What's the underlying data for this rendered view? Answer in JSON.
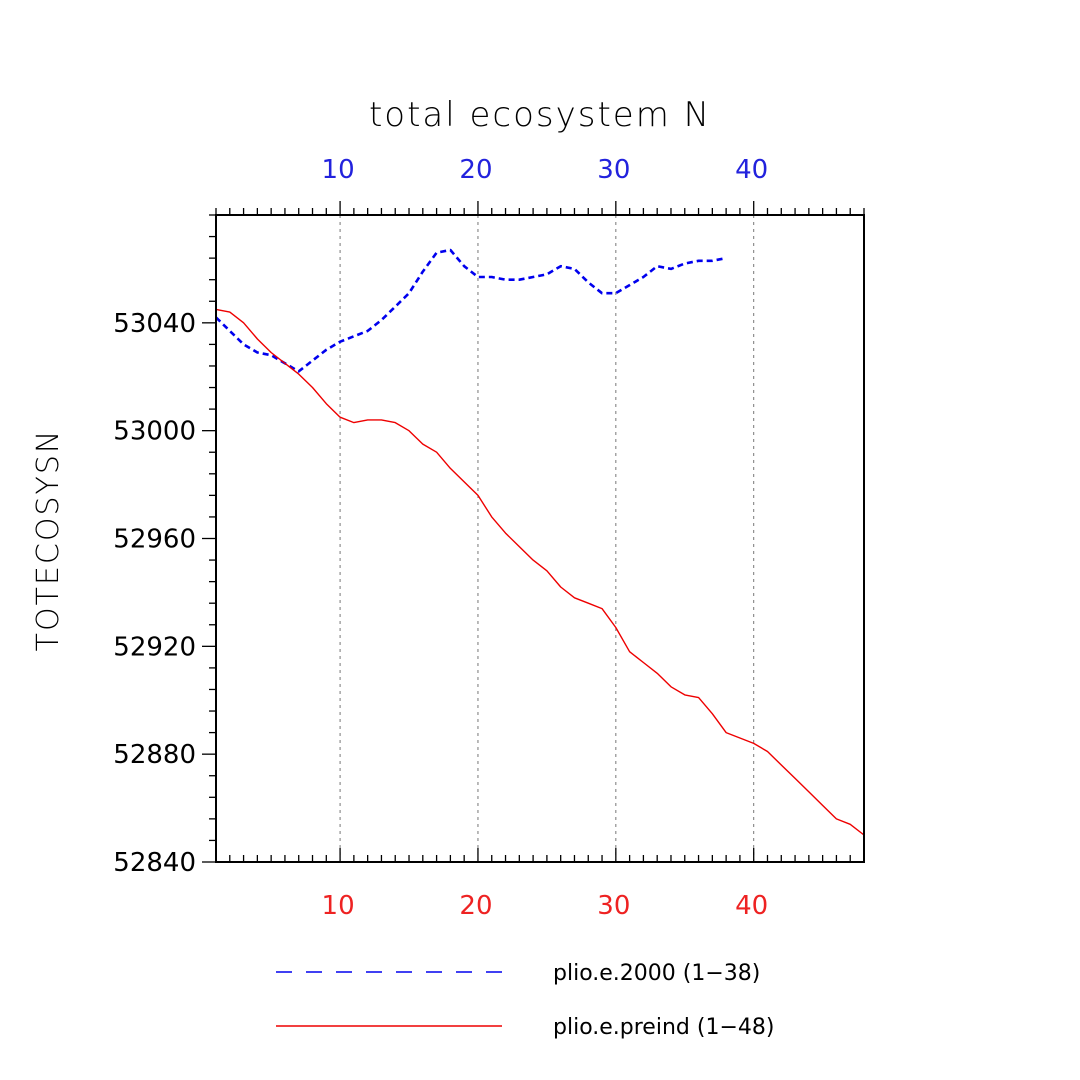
{
  "chart_data": {
    "type": "line",
    "title": "total ecosystem N",
    "ylabel": "TOTECOSYSN",
    "xlim": [
      1,
      48
    ],
    "ylim": [
      52840,
      53080
    ],
    "yticks": [
      52840,
      52880,
      52920,
      52960,
      53000,
      53040
    ],
    "xticks": [
      10,
      20,
      30,
      40
    ],
    "top_axis_color": "#2222dd",
    "bottom_axis_color": "#ee2222",
    "grid": "vertical dashed at x ticks",
    "legend_position": "bottom",
    "series": [
      {
        "name": "plio.e.2000 (1−38)",
        "color": "#0000ee",
        "style": "dashed",
        "x": [
          1,
          2,
          3,
          4,
          5,
          6,
          7,
          8,
          9,
          10,
          11,
          12,
          13,
          14,
          15,
          16,
          17,
          18,
          19,
          20,
          21,
          22,
          23,
          24,
          25,
          26,
          27,
          28,
          29,
          30,
          31,
          32,
          33,
          34,
          35,
          36,
          37,
          38
        ],
        "y": [
          53042,
          53037,
          53032,
          53029,
          53028,
          53025,
          53022,
          53026,
          53030,
          53033,
          53035,
          53037,
          53041,
          53046,
          53051,
          53059,
          53066,
          53067,
          53061,
          53057,
          53057,
          53056,
          53056,
          53057,
          53058,
          53061,
          53060,
          53055,
          53051,
          53051,
          53054,
          53057,
          53061,
          53060,
          53062,
          53063,
          53063,
          53064
        ]
      },
      {
        "name": "plio.e.preind (1−48)",
        "color": "#ee0000",
        "style": "solid",
        "x": [
          1,
          2,
          3,
          4,
          5,
          6,
          7,
          8,
          9,
          10,
          11,
          12,
          13,
          14,
          15,
          16,
          17,
          18,
          19,
          20,
          21,
          22,
          23,
          24,
          25,
          26,
          27,
          28,
          29,
          30,
          31,
          32,
          33,
          34,
          35,
          36,
          37,
          38,
          39,
          40,
          41,
          42,
          43,
          44,
          45,
          46,
          47,
          48
        ],
        "y": [
          53045,
          53044,
          53040,
          53034,
          53029,
          53025,
          53021,
          53016,
          53010,
          53005,
          53003,
          53004,
          53004,
          53003,
          53000,
          52995,
          52992,
          52986,
          52981,
          52976,
          52968,
          52962,
          52957,
          52952,
          52948,
          52942,
          52938,
          52936,
          52934,
          52927,
          52918,
          52914,
          52910,
          52905,
          52902,
          52901,
          52895,
          52888,
          52886,
          52884,
          52881,
          52876,
          52871,
          52866,
          52861,
          52856,
          52854,
          52850
        ]
      }
    ]
  }
}
